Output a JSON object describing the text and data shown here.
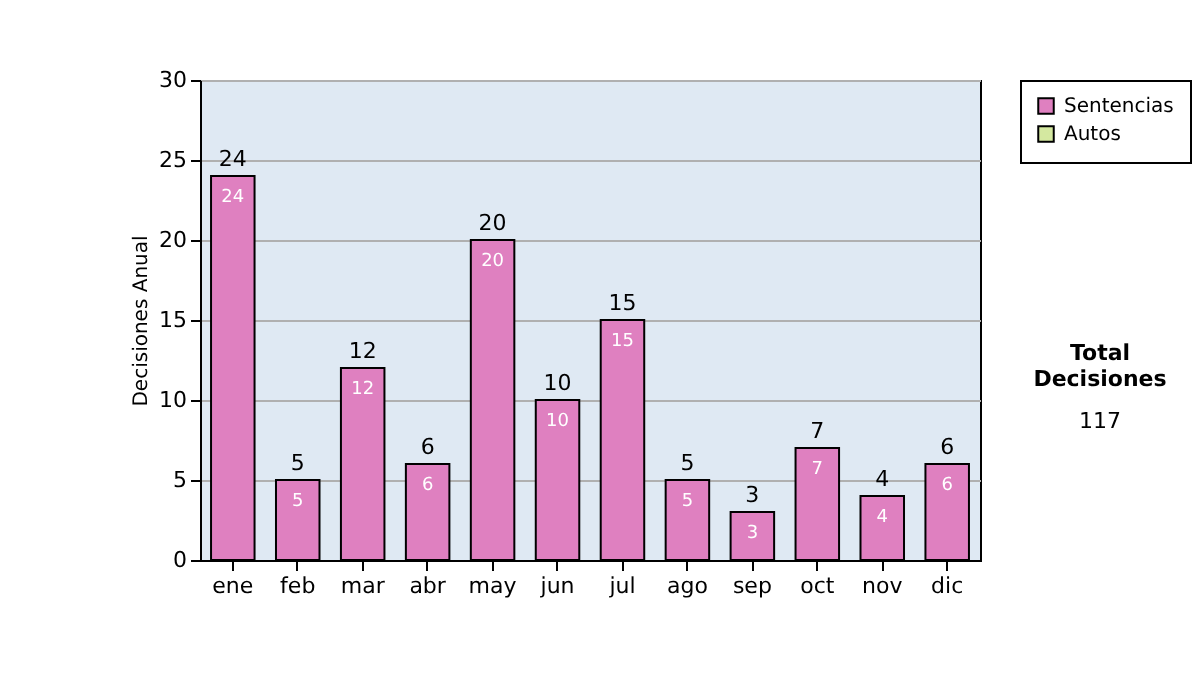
{
  "chart_data": {
    "type": "bar",
    "ylabel": "Decisiones Anual",
    "categories": [
      "ene",
      "feb",
      "mar",
      "abr",
      "may",
      "jun",
      "jul",
      "ago",
      "sep",
      "oct",
      "nov",
      "dic"
    ],
    "series": [
      {
        "name": "Sentencias",
        "color": "#df80c0",
        "values": [
          24,
          5,
          12,
          6,
          20,
          10,
          15,
          5,
          3,
          7,
          4,
          6
        ],
        "value_labels": [
          "24",
          "5",
          "12",
          "6",
          "20",
          "10",
          "15",
          "5",
          "3",
          "7",
          "4",
          "6"
        ]
      },
      {
        "name": "Autos",
        "color": "#d4e8a0",
        "values": [
          0,
          0,
          0,
          0,
          0,
          0,
          0,
          0,
          0,
          0,
          0,
          0
        ]
      }
    ],
    "stacked": true,
    "totals": [
      "24",
      "5",
      "12",
      "6",
      "20",
      "10",
      "15",
      "5",
      "3",
      "7",
      "4",
      "6"
    ],
    "ylim": [
      0,
      30
    ],
    "yticks": [
      0,
      5,
      10,
      15,
      20,
      25,
      30
    ],
    "grid": "y",
    "legend": "right",
    "annotations": [
      "Total Decisiones",
      "117"
    ]
  }
}
